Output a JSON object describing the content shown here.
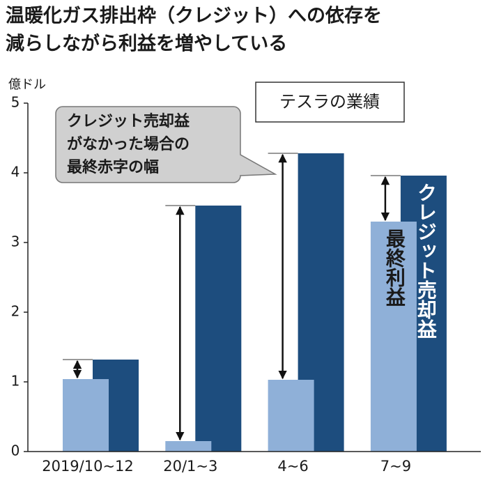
{
  "chart_data": {
    "type": "bar",
    "title": [
      "温暖化ガス排出枠（クレジット）への依存を",
      "減らしながら利益を増やしている"
    ],
    "y_label": "億ドル",
    "legend_title": "テスラの業績",
    "annotation": [
      "クレジット売却益",
      "がなかった場合の",
      "最終赤字の幅"
    ],
    "categories": [
      "2019/10~12",
      "20/1~3",
      "4~6",
      "7~9"
    ],
    "series": [
      {
        "name": "最終利益",
        "color": "#8fb0d8",
        "values": [
          1.04,
          0.15,
          1.03,
          3.3
        ]
      },
      {
        "name": "クレジット売却益",
        "color": "#1d4d7e",
        "values": [
          1.32,
          3.53,
          4.28,
          3.96
        ]
      }
    ],
    "ylim": [
      0,
      5
    ],
    "yticks": [
      0,
      1,
      2,
      3,
      4,
      5
    ],
    "grid": false
  }
}
